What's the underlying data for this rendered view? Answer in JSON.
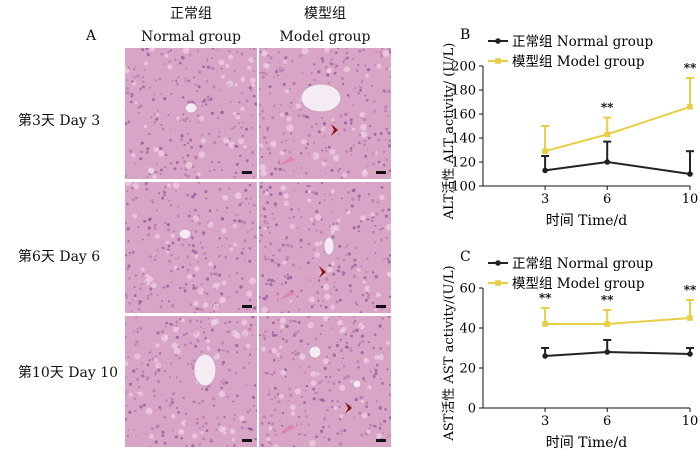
{
  "panel_a": {
    "label": "A",
    "columns": [
      {
        "zh": "正常组",
        "en": "Normal group"
      },
      {
        "zh": "模型组",
        "en": "Model group"
      }
    ],
    "rows": [
      "第3天 Day 3",
      "第6天 Day 6",
      "第10天 Day 10"
    ]
  },
  "colors": {
    "tissue": "#d9a5c6",
    "normal_line": "#222222",
    "model_line": "#e6cf45"
  },
  "chart_data": [
    {
      "type": "line",
      "panel_label": "B",
      "x": [
        3,
        6,
        10
      ],
      "xlabel": "时间  Time/d",
      "ylabel": "ALT活性 ALT activity/ (U/L)",
      "ylim": [
        100,
        200
      ],
      "yticks": [
        100,
        120,
        140,
        160,
        180,
        200
      ],
      "series": [
        {
          "name": "正常组 Normal group",
          "values": [
            113,
            120,
            110
          ],
          "errors": [
            12,
            17,
            19
          ]
        },
        {
          "name": "模型组 Model group",
          "values": [
            129,
            143,
            166
          ],
          "errors": [
            21,
            14,
            24
          ],
          "significance": [
            "",
            "**",
            "**"
          ]
        }
      ],
      "legend": "top-left"
    },
    {
      "type": "line",
      "panel_label": "C",
      "x": [
        3,
        6,
        10
      ],
      "xlabel": "时间  Time/d",
      "ylabel": "AST活性 AST activity/(U/L)",
      "ylim": [
        0,
        60
      ],
      "yticks": [
        0,
        20,
        40,
        60
      ],
      "series": [
        {
          "name": "正常组 Normal group",
          "values": [
            26,
            28,
            27
          ],
          "errors": [
            4,
            6,
            3
          ]
        },
        {
          "name": "模型组 Model group",
          "values": [
            42,
            42,
            45
          ],
          "errors": [
            8,
            7,
            9
          ],
          "significance": [
            "**",
            "**",
            "**"
          ]
        }
      ],
      "legend": "top-left"
    }
  ]
}
